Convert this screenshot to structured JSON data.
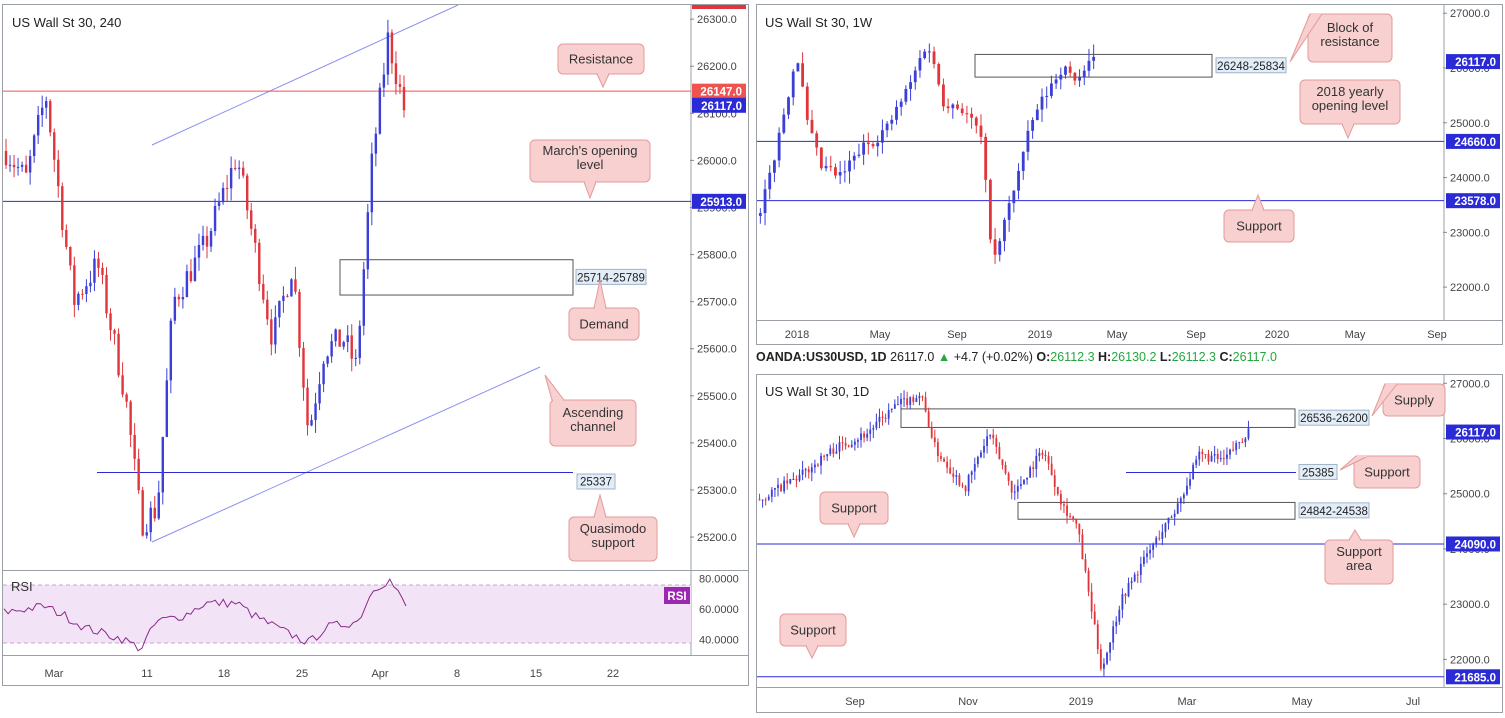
{
  "header": {
    "symbol": "OANDA:US30USD, 1D",
    "last": "26117.0",
    "change_arrow": "▲",
    "change": "+4.7 (+0.02%)",
    "o_label": "O:",
    "o": "26112.3",
    "h_label": "H:",
    "h": "26130.2",
    "l_label": "L:",
    "l": "26112.3",
    "c_label": "C:",
    "c": "26117.0"
  },
  "colors": {
    "bull": "#3b3fd6",
    "bear": "#e0353b",
    "resistance_line": "#ef5350",
    "level_line": "#2b2bd6",
    "channel_line": "#8c8ff0",
    "callout_fill": "#f8d0d0",
    "callout_stroke": "#e39a9a",
    "rsi_line": "#8b2a8b",
    "rsi_fill": "#f3e3f7"
  },
  "chart_data": [
    {
      "id": "h4",
      "type": "candlestick",
      "title": "US Wall St 30, 240",
      "ylim": [
        25130,
        26330
      ],
      "y_ticks": [
        "26300.0",
        "26200.0",
        "26100.0",
        "26000.0",
        "25900.0",
        "25800.0",
        "25700.0",
        "25600.0",
        "25500.0",
        "25400.0",
        "25300.0",
        "25200.0"
      ],
      "x_ticks": [
        "Mar",
        "11",
        "18",
        "25",
        "Apr",
        "8",
        "15",
        "22"
      ],
      "price_labels": [
        {
          "value": 26147.0,
          "text": "26147.0",
          "color": "#ef5350"
        },
        {
          "value": 26117.0,
          "text": "26117.0",
          "color": "#2b2bd6"
        },
        {
          "value": 25913.0,
          "text": "25913.0",
          "color": "#2b2bd6"
        }
      ],
      "levels": [
        {
          "value": 26147,
          "kind": "resistance"
        },
        {
          "value": 25913,
          "kind": "level"
        },
        {
          "value": 25337,
          "kind": "level",
          "label": "25337"
        }
      ],
      "zones": [
        {
          "top": 25789,
          "bottom": 25714,
          "label": "25714-25789"
        }
      ],
      "annotations": [
        "Resistance",
        "March's opening level",
        "Demand",
        "Ascending channel",
        "Quasimodo support"
      ],
      "indicator": {
        "name": "RSI",
        "badge": "RSI",
        "ylim": [
          30,
          85
        ],
        "ticks": [
          "80.0000",
          "60.0000",
          "40.0000"
        ],
        "band": [
          70,
          30
        ]
      }
    },
    {
      "id": "weekly",
      "type": "candlestick",
      "title": "US Wall St 30, 1W",
      "ylim": [
        21400,
        27150
      ],
      "y_ticks": [
        "27000.0",
        "26000.0",
        "25000.0",
        "24000.0",
        "23000.0",
        "22000.0"
      ],
      "x_ticks": [
        "2018",
        "May",
        "Sep",
        "2019",
        "May",
        "Sep",
        "2020",
        "May",
        "Sep"
      ],
      "price_labels": [
        {
          "value": 26117.0,
          "text": "26117.0",
          "color": "#2b2bd6"
        },
        {
          "value": 24660.0,
          "text": "24660.0",
          "color": "#2b2bd6"
        },
        {
          "value": 23578.0,
          "text": "23578.0",
          "color": "#2b2bd6"
        }
      ],
      "levels": [
        {
          "value": 24660,
          "kind": "level"
        },
        {
          "value": 23578,
          "kind": "level"
        }
      ],
      "zones": [
        {
          "top": 26248,
          "bottom": 25834,
          "label": "26248-25834"
        }
      ],
      "annotations": [
        "Block of resistance",
        "2018 yearly opening level",
        "Support"
      ]
    },
    {
      "id": "daily",
      "type": "candlestick",
      "title": "US Wall St 30, 1D",
      "ylim": [
        21500,
        27150
      ],
      "y_ticks": [
        "27000.0",
        "26000.0",
        "25000.0",
        "24000.0",
        "23000.0",
        "22000.0"
      ],
      "x_ticks": [
        "Sep",
        "Nov",
        "2019",
        "Mar",
        "May",
        "Jul"
      ],
      "price_labels": [
        {
          "value": 26117.0,
          "text": "26117.0",
          "color": "#2b2bd6"
        },
        {
          "value": 24090.0,
          "text": "24090.0",
          "color": "#2b2bd6"
        },
        {
          "value": 21685.0,
          "text": "21685.0",
          "color": "#2b2bd6"
        }
      ],
      "levels": [
        {
          "value": 25385,
          "kind": "level",
          "label": "25385"
        },
        {
          "value": 24090,
          "kind": "level"
        },
        {
          "value": 21685,
          "kind": "level"
        }
      ],
      "zones": [
        {
          "top": 26536,
          "bottom": 26200,
          "label": "26536-26200"
        },
        {
          "top": 24842,
          "bottom": 24538,
          "label": "24842-24538"
        }
      ],
      "annotations": [
        "Supply",
        "Support",
        "Support",
        "Support area",
        "Support"
      ]
    }
  ]
}
